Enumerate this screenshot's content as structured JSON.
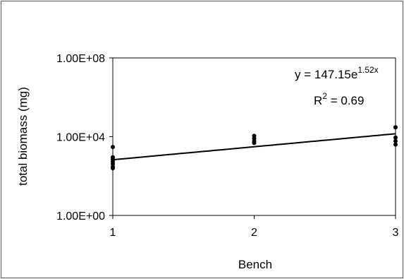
{
  "chart_data": {
    "type": "scatter",
    "title": "",
    "xlabel": "Bench",
    "ylabel": "total biomass (mg)",
    "x_ticks": [
      "1",
      "2",
      "3"
    ],
    "y_ticks": [
      "1.00E+00",
      "1.00E+04",
      "1.00E+08"
    ],
    "xlim": [
      1,
      3
    ],
    "ylim": [
      1,
      100000000
    ],
    "y_scale": "log",
    "grid": false,
    "series": [
      {
        "points": [
          {
            "x": 1,
            "y": 3000
          },
          {
            "x": 1,
            "y": 900
          },
          {
            "x": 1,
            "y": 700
          },
          {
            "x": 1,
            "y": 550
          },
          {
            "x": 1,
            "y": 420
          },
          {
            "x": 1,
            "y": 300
          },
          {
            "x": 1,
            "y": 250
          },
          {
            "x": 2,
            "y": 11000
          },
          {
            "x": 2,
            "y": 8000
          },
          {
            "x": 2,
            "y": 6000
          },
          {
            "x": 2,
            "y": 4800
          },
          {
            "x": 3,
            "y": 30000
          },
          {
            "x": 3,
            "y": 9000
          },
          {
            "x": 3,
            "y": 6000
          },
          {
            "x": 3,
            "y": 4000
          }
        ]
      }
    ],
    "trendline": {
      "type": "exponential",
      "a": 147.15,
      "b": 1.52,
      "equation_prefix": "y = 147.15e",
      "equation_exponent": "1.52x",
      "r2_prefix": "R",
      "r2_exponent": "2",
      "r2_suffix": " = 0.69"
    }
  }
}
